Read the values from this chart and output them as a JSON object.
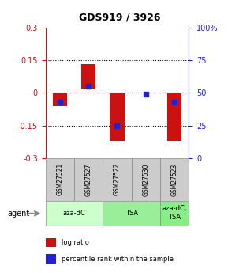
{
  "title": "GDS919 / 3926",
  "samples": [
    "GSM27521",
    "GSM27527",
    "GSM27522",
    "GSM27530",
    "GSM27523"
  ],
  "log_ratio_bottom": [
    0.0,
    0.02,
    0.0,
    0.0,
    0.0
  ],
  "log_ratio_top": [
    -0.06,
    0.13,
    -0.22,
    0.0,
    -0.22
  ],
  "percentile": [
    0.43,
    0.55,
    0.25,
    0.49,
    0.43
  ],
  "bar_color": "#cc1111",
  "dot_color": "#2222cc",
  "ylim": [
    -0.3,
    0.3
  ],
  "yticks_left": [
    -0.3,
    -0.15,
    0.0,
    0.15,
    0.3
  ],
  "yticks_left_labels": [
    "-0.3",
    "-0.15",
    "0",
    "0.15",
    "0.3"
  ],
  "yticks_right": [
    0,
    25,
    50,
    75,
    100
  ],
  "yticks_right_labels": [
    "0",
    "25",
    "50",
    "75",
    "100%"
  ],
  "hlines_dotted": [
    -0.15,
    0.15
  ],
  "hline_dashed": 0.0,
  "groups": [
    {
      "label": "aza-dC",
      "start": 0,
      "end": 2,
      "color": "#ccffcc"
    },
    {
      "label": "TSA",
      "start": 2,
      "end": 4,
      "color": "#99ee99"
    },
    {
      "label": "aza-dC,\nTSA",
      "start": 4,
      "end": 5,
      "color": "#88ee88"
    }
  ],
  "agent_label": "agent",
  "legend_items": [
    {
      "color": "#cc1111",
      "label": "log ratio"
    },
    {
      "color": "#2222cc",
      "label": "percentile rank within the sample"
    }
  ],
  "left_axis_color": "#cc1111",
  "right_axis_color": "#2222cc",
  "bar_width": 0.5
}
